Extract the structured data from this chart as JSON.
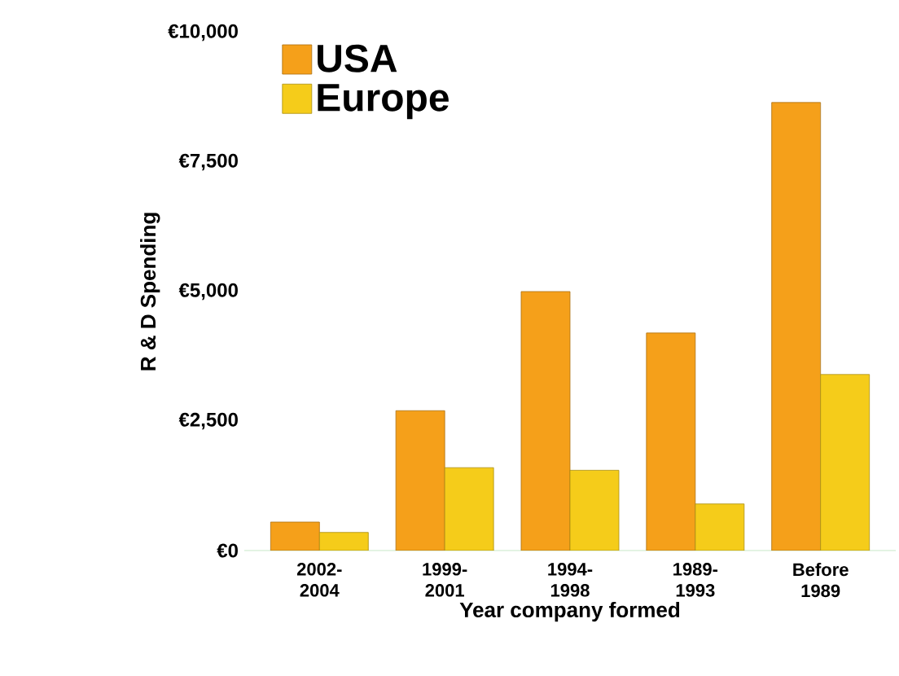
{
  "chart_data": {
    "type": "bar",
    "xlabel": "Year company formed",
    "ylabel": "R & D Spending",
    "categories": [
      "2002-2004",
      "1999-2001",
      "1994-1998",
      "1989-1993",
      "Before 1989"
    ],
    "series": [
      {
        "name": "USA",
        "color": "#f5a01a",
        "values": [
          550,
          2700,
          5000,
          4200,
          8650
        ]
      },
      {
        "name": "Europe",
        "color": "#f5cc1a",
        "values": [
          350,
          1600,
          1550,
          900,
          3400
        ]
      }
    ],
    "ylim": [
      0,
      10000
    ],
    "yticks": [
      {
        "value": 0,
        "label": "€0"
      },
      {
        "value": 2500,
        "label": "€2,500"
      },
      {
        "value": 5000,
        "label": "€5,000"
      },
      {
        "value": 7500,
        "label": "€7,500"
      },
      {
        "value": 10000,
        "label": "€10,000"
      }
    ],
    "grid": false,
    "legend": "top left"
  }
}
